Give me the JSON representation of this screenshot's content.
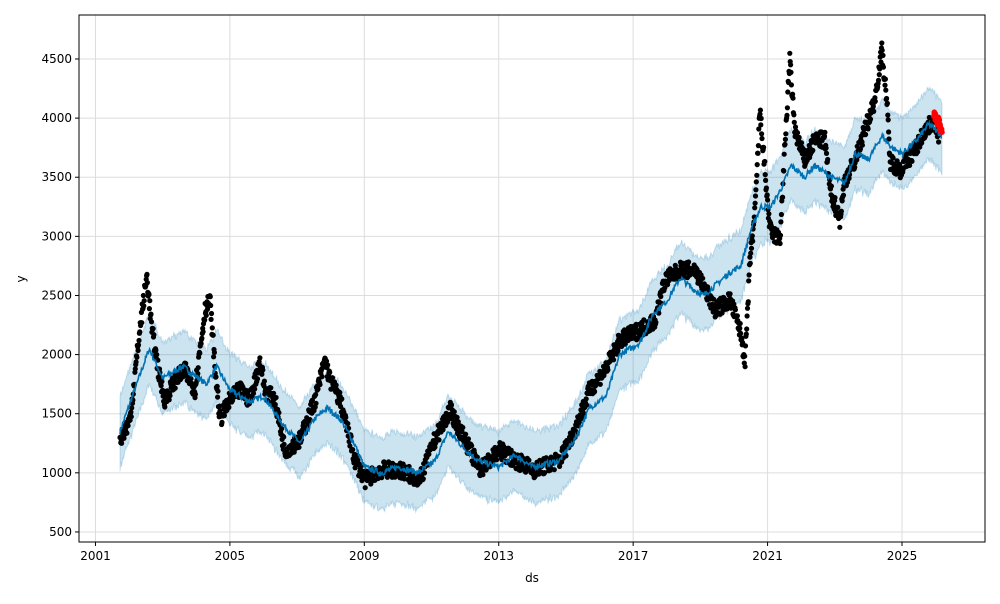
{
  "chart_data": {
    "type": "line",
    "title": "",
    "xlabel": "ds",
    "ylabel": "y",
    "xlim": [
      2000.51,
      2027.47
    ],
    "ylim": [
      415,
      4872
    ],
    "grid": true,
    "x_ticks": [
      "2001",
      "2005",
      "2009",
      "2013",
      "2017",
      "2021",
      "2025"
    ],
    "y_ticks": [
      "500",
      "1000",
      "1500",
      "2000",
      "2500",
      "3000",
      "3500",
      "4000",
      "4500"
    ],
    "colors": {
      "observed": "#000000",
      "forecast": "#0072B2",
      "interval": "#0072B2",
      "recent": "#ff0000",
      "grid": "#dddddd"
    },
    "series": [
      {
        "role": "observed",
        "x": [
          2001.73,
          2002.03,
          2002.32,
          2002.53,
          2002.68,
          2002.92,
          2003.07,
          2003.37,
          2003.66,
          2003.96,
          2004.26,
          2004.41,
          2004.56,
          2004.71,
          2005.0,
          2005.3,
          2005.6,
          2005.9,
          2006.04,
          2006.34,
          2006.64,
          2007.09,
          2007.53,
          2007.83,
          2007.98,
          2008.28,
          2008.72,
          2009.02,
          2009.47,
          2010.06,
          2010.66,
          2011.1,
          2011.55,
          2011.99,
          2012.44,
          2013.04,
          2013.48,
          2014.08,
          2014.82,
          2015.27,
          2015.71,
          2016.16,
          2016.61,
          2017.2,
          2017.65,
          2017.95,
          2018.4,
          2018.84,
          2019.14,
          2019.44,
          2019.88,
          2020.18,
          2020.33,
          2020.48,
          2020.63,
          2020.77,
          2020.92,
          2021.07,
          2021.37,
          2021.51,
          2021.66,
          2021.81,
          2022.11,
          2022.41,
          2022.71,
          2022.86,
          2023.15,
          2023.3,
          2023.6,
          2023.9,
          2024.19,
          2024.4,
          2024.55,
          2024.64,
          2024.94,
          2025.39,
          2025.68,
          2025.98,
          2026.13
        ],
        "y": [
          1280,
          1450,
          2210,
          2670,
          2210,
          1785,
          1615,
          1785,
          1870,
          1700,
          2380,
          2460,
          1870,
          1450,
          1615,
          1700,
          1615,
          1950,
          1700,
          1615,
          1190,
          1280,
          1615,
          1950,
          1785,
          1615,
          1110,
          940,
          1025,
          1025,
          940,
          1280,
          1530,
          1280,
          1025,
          1190,
          1110,
          1025,
          1110,
          1365,
          1700,
          1870,
          2120,
          2210,
          2290,
          2630,
          2715,
          2715,
          2550,
          2380,
          2460,
          2210,
          1950,
          2800,
          3220,
          4070,
          3560,
          3050,
          2970,
          3730,
          4490,
          3900,
          3640,
          3815,
          3815,
          3390,
          3140,
          3475,
          3640,
          3900,
          4150,
          4575,
          4150,
          3640,
          3560,
          3730,
          3900,
          3980,
          3815
        ]
      },
      {
        "role": "forecast",
        "x": [
          2001.73,
          2002.6,
          2003.0,
          2003.6,
          2004.3,
          2004.6,
          2005.0,
          2005.6,
          2006.0,
          2006.6,
          2007.1,
          2007.5,
          2007.9,
          2008.3,
          2008.7,
          2009.0,
          2009.5,
          2010.0,
          2010.6,
          2011.1,
          2011.5,
          2012.0,
          2012.4,
          2013.0,
          2013.5,
          2014.0,
          2014.8,
          2015.3,
          2015.7,
          2016.2,
          2016.6,
          2017.2,
          2017.6,
          2018.0,
          2018.4,
          2018.8,
          2019.1,
          2019.5,
          2019.9,
          2020.2,
          2020.5,
          2020.8,
          2021.1,
          2021.4,
          2021.7,
          2022.1,
          2022.4,
          2022.9,
          2023.3,
          2023.6,
          2024.0,
          2024.4,
          2024.7,
          2025.0,
          2025.4,
          2025.8,
          2026.2
        ],
        "y": [
          1350,
          2050,
          1800,
          1900,
          1750,
          1900,
          1700,
          1600,
          1650,
          1400,
          1250,
          1450,
          1550,
          1450,
          1250,
          1050,
          1000,
          1050,
          1000,
          1100,
          1350,
          1200,
          1100,
          1050,
          1150,
          1050,
          1100,
          1300,
          1550,
          1650,
          2000,
          2100,
          2350,
          2450,
          2650,
          2550,
          2500,
          2600,
          2700,
          2750,
          3050,
          3250,
          3250,
          3400,
          3600,
          3500,
          3600,
          3500,
          3450,
          3700,
          3650,
          3850,
          3750,
          3700,
          3800,
          3950,
          3850
        ],
        "interval_halfwidth": 300
      },
      {
        "role": "recent",
        "x": [
          2025.98,
          2026.02,
          2026.06,
          2026.1,
          2026.14,
          2026.18
        ],
        "y": [
          4030,
          4000,
          3960,
          3990,
          3930,
          3900
        ]
      }
    ]
  }
}
